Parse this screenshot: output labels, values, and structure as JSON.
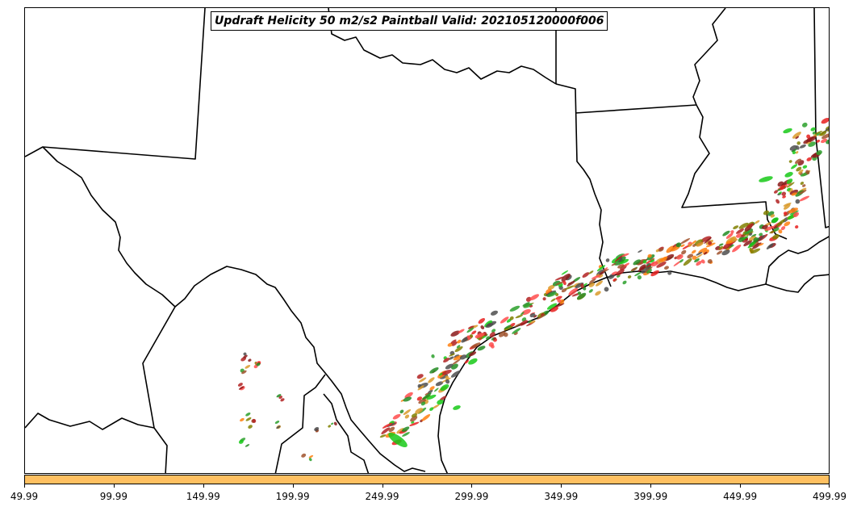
{
  "title": "Updraft Helicity 50 m2/s2 Paintball Valid: 202105120000f006",
  "colorbar": {
    "color": "#ffc061"
  },
  "ticks": [
    "49.99",
    "99.99",
    "149.99",
    "199.99",
    "249.99",
    "299.99",
    "349.99",
    "399.99",
    "449.99",
    "499.99"
  ],
  "member_colors": [
    "#e8201f",
    "#ff7f0e",
    "#d99a2a",
    "#8b1a1a",
    "#2ca02c",
    "#17c917",
    "#808000",
    "#b22222",
    "#a0522d",
    "#4d4d4d",
    "#228b22",
    "#ff4c4c"
  ]
}
